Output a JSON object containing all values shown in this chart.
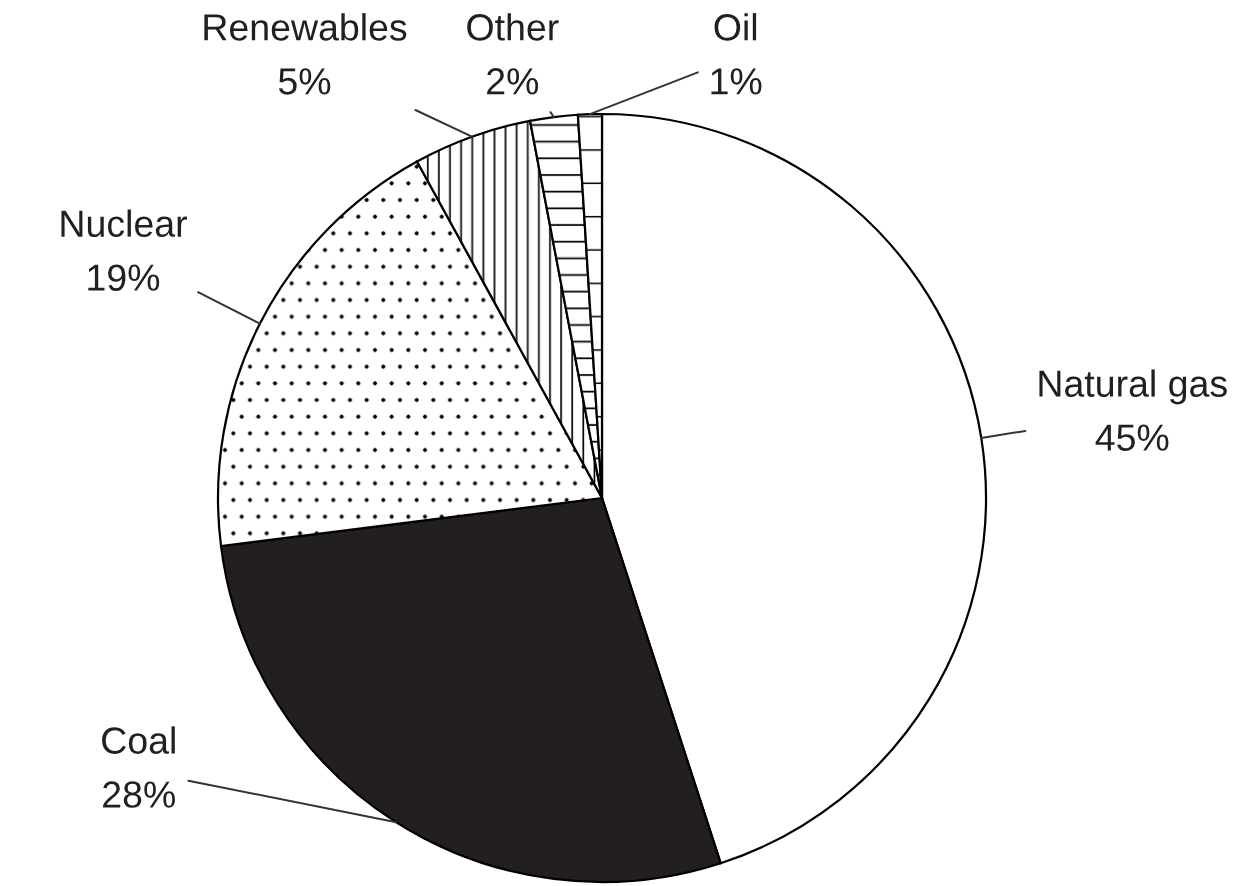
{
  "chart_data": {
    "type": "pie",
    "categories": [
      "Natural gas",
      "Coal",
      "Nuclear",
      "Renewables",
      "Other",
      "Oil"
    ],
    "values": [
      45,
      28,
      19,
      5,
      2,
      1
    ],
    "colors": [
      "#ffffff",
      "#231f20",
      "#ffffff",
      "#ffffff",
      "#ffffff",
      "#ffffff"
    ],
    "value_labels": [
      "45%",
      "28%",
      "19%",
      "5%",
      "2%",
      "1%"
    ]
  }
}
